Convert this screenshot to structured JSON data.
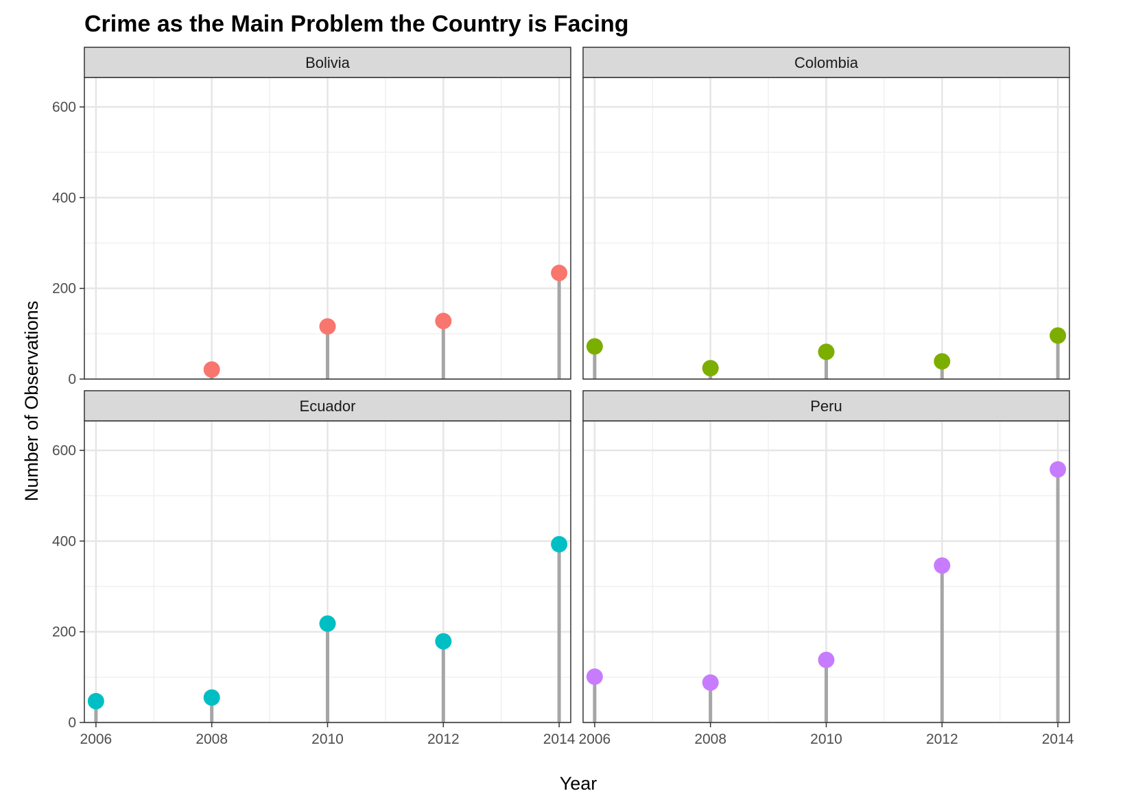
{
  "chart_data": {
    "type": "lollipop",
    "title": "Crime as the Main Problem the Country is Facing",
    "xlabel": "Year",
    "ylabel": "Number of Observations",
    "xlim": [
      2005.8,
      2014.2
    ],
    "ylim": [
      0,
      665
    ],
    "x_ticks": [
      2006,
      2008,
      2010,
      2012,
      2014
    ],
    "y_ticks": [
      0,
      200,
      400,
      600
    ],
    "grid": true,
    "legend": "none",
    "panels": [
      {
        "name": "Bolivia",
        "color": "#F8766D",
        "x": [
          2008,
          2010,
          2012,
          2014
        ],
        "values": [
          21,
          116,
          128,
          234
        ]
      },
      {
        "name": "Colombia",
        "color": "#7CAE00",
        "x": [
          2006,
          2008,
          2010,
          2012,
          2014
        ],
        "values": [
          72,
          24,
          60,
          39,
          96
        ]
      },
      {
        "name": "Ecuador",
        "color": "#00BFC4",
        "x": [
          2006,
          2008,
          2010,
          2012,
          2014
        ],
        "values": [
          47,
          55,
          218,
          179,
          393
        ]
      },
      {
        "name": "Peru",
        "color": "#C77CFF",
        "x": [
          2006,
          2008,
          2010,
          2012,
          2014
        ],
        "values": [
          101,
          88,
          138,
          346,
          558
        ]
      }
    ],
    "stem_color": "#A6A6A6"
  }
}
